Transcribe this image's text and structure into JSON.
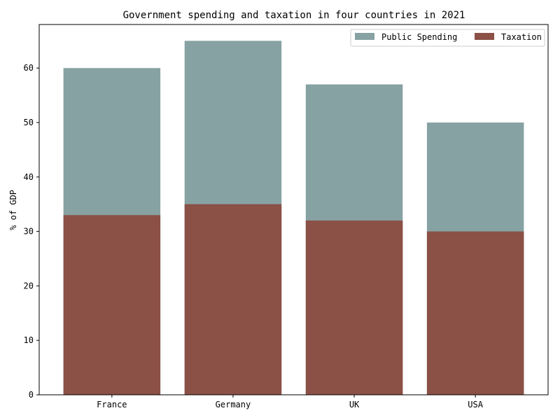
{
  "chart_data": {
    "type": "bar",
    "stacked": false,
    "overlay": true,
    "title": "Government spending and taxation in four countries in 2021",
    "xlabel": "",
    "ylabel": "% of GDP",
    "categories": [
      "France",
      "Germany",
      "UK",
      "USA"
    ],
    "series": [
      {
        "name": "Public Spending",
        "values": [
          60,
          65,
          57,
          50
        ],
        "color": "#87A2A3"
      },
      {
        "name": "Taxation",
        "values": [
          33,
          35,
          32,
          30
        ],
        "color": "#8B5046"
      }
    ],
    "ylim": [
      0,
      68
    ],
    "yticks": [
      "0",
      "10",
      "20",
      "30",
      "40",
      "50",
      "60"
    ],
    "grid": false,
    "legend": {
      "position": "top-right",
      "columns": 2
    }
  }
}
